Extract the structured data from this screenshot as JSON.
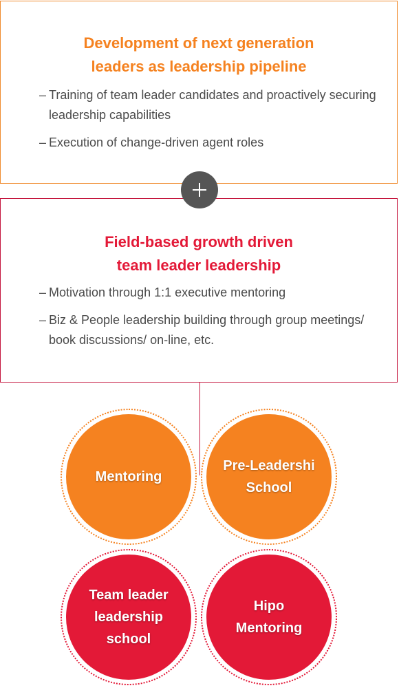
{
  "colors": {
    "orange": "#f58220",
    "red": "#e31937",
    "plus_badge": "#555555",
    "body_text": "#4a4a4a"
  },
  "top_box": {
    "title_lines": [
      "Development of next generation",
      "leaders as leadership pipeline"
    ],
    "bullets": [
      {
        "dash": "–",
        "text": "Training of team leader candidates and proactively securing leadership capabilities"
      },
      {
        "dash": "–",
        "text": "Execution of change-driven agent roles"
      }
    ]
  },
  "connector_icon": "plus-icon",
  "bottom_box": {
    "title_lines": [
      "Field-based growth driven",
      "team leader leadership"
    ],
    "bullets": [
      {
        "dash": "–",
        "text": "Motivation through 1:1 executive mentoring"
      },
      {
        "dash": "–",
        "text": "Biz & People leadership building through group meetings/ book discussions/ on-line, etc."
      }
    ]
  },
  "programs": [
    {
      "lines": [
        "Mentoring"
      ],
      "color": "orange"
    },
    {
      "lines": [
        "Pre-Leadershi",
        "School"
      ],
      "color": "orange"
    },
    {
      "lines": [
        "Team leader",
        "leadership",
        "school"
      ],
      "color": "red"
    },
    {
      "lines": [
        "Hipo",
        "Mentoring"
      ],
      "color": "red"
    }
  ]
}
